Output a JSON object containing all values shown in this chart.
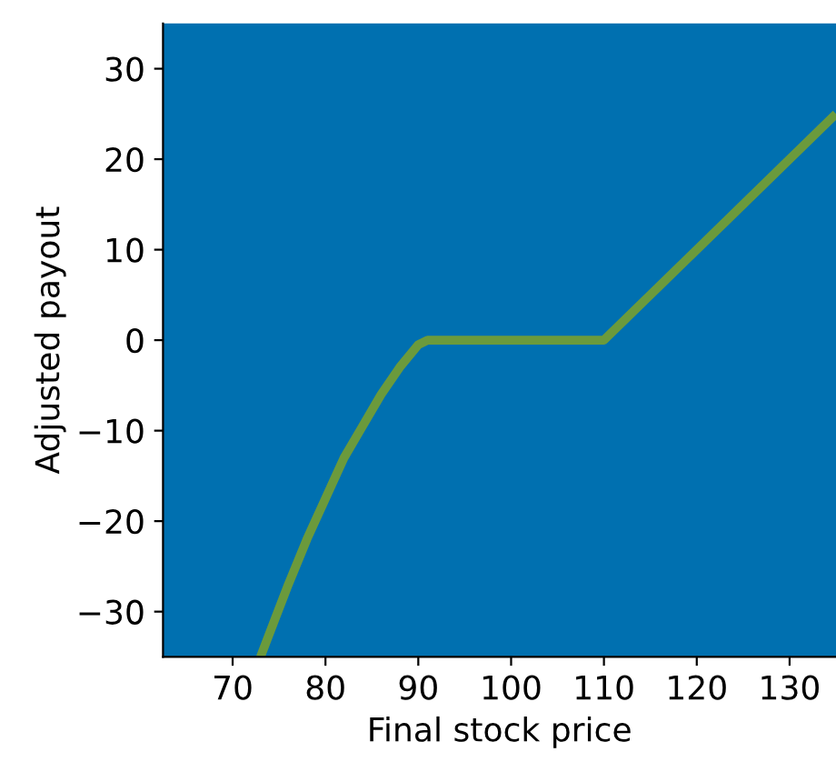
{
  "chart_data": {
    "type": "line",
    "xlabel": "Final stock price",
    "ylabel": "Adjusted payout",
    "series": [
      {
        "color": "#6b9a3c",
        "x": [
          73,
          74.5,
          76,
          78,
          80,
          82,
          84,
          86,
          88,
          90,
          91,
          110,
          135
        ],
        "values": [
          -35,
          -31,
          -27,
          -22,
          -17.5,
          -13,
          -9.5,
          -6,
          -3,
          -0.5,
          0,
          0,
          25
        ]
      }
    ],
    "xlim": [
      62.5,
      135
    ],
    "ylim": [
      -35,
      35
    ],
    "xticks": [
      70,
      80,
      90,
      100,
      110,
      120,
      130
    ],
    "yticks": [
      -30,
      -20,
      -10,
      0,
      10,
      20,
      30
    ],
    "grid": false,
    "legend": false,
    "marker": "none",
    "line_style": "solid"
  }
}
